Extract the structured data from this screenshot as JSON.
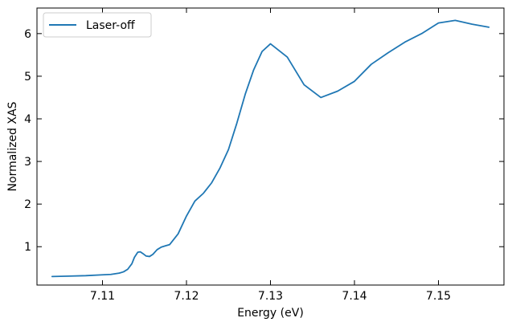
{
  "chart_data": {
    "type": "line",
    "xlabel": "Energy (eV)",
    "ylabel": "Normalized XAS",
    "xlim": [
      7.1022,
      7.1578
    ],
    "ylim": [
      0.1,
      6.6
    ],
    "xticks": [
      7.11,
      7.12,
      7.13,
      7.14,
      7.15
    ],
    "xtick_labels": [
      "7.11",
      "7.12",
      "7.13",
      "7.14",
      "7.15"
    ],
    "yticks": [
      1,
      2,
      3,
      4,
      5,
      6
    ],
    "ytick_labels": [
      "1",
      "2",
      "3",
      "4",
      "5",
      "6"
    ],
    "legend_position": "upper-left",
    "grid": false,
    "tick_direction": "in",
    "ticks_on_all_sides": true,
    "series": [
      {
        "name": "Laser-off",
        "color": "#1f77b4",
        "points": [
          [
            7.104,
            0.3
          ],
          [
            7.106,
            0.31
          ],
          [
            7.108,
            0.32
          ],
          [
            7.11,
            0.34
          ],
          [
            7.111,
            0.35
          ],
          [
            7.112,
            0.38
          ],
          [
            7.1125,
            0.41
          ],
          [
            7.113,
            0.47
          ],
          [
            7.1135,
            0.6
          ],
          [
            7.1138,
            0.75
          ],
          [
            7.1142,
            0.87
          ],
          [
            7.1145,
            0.88
          ],
          [
            7.1148,
            0.84
          ],
          [
            7.1152,
            0.78
          ],
          [
            7.1156,
            0.77
          ],
          [
            7.116,
            0.82
          ],
          [
            7.1165,
            0.93
          ],
          [
            7.117,
            0.99
          ],
          [
            7.1175,
            1.02
          ],
          [
            7.118,
            1.05
          ],
          [
            7.119,
            1.3
          ],
          [
            7.12,
            1.72
          ],
          [
            7.121,
            2.07
          ],
          [
            7.122,
            2.25
          ],
          [
            7.123,
            2.5
          ],
          [
            7.124,
            2.85
          ],
          [
            7.125,
            3.28
          ],
          [
            7.126,
            3.9
          ],
          [
            7.127,
            4.58
          ],
          [
            7.128,
            5.15
          ],
          [
            7.129,
            5.58
          ],
          [
            7.13,
            5.76
          ],
          [
            7.132,
            5.45
          ],
          [
            7.134,
            4.8
          ],
          [
            7.136,
            4.5
          ],
          [
            7.138,
            4.65
          ],
          [
            7.14,
            4.88
          ],
          [
            7.142,
            5.28
          ],
          [
            7.144,
            5.55
          ],
          [
            7.146,
            5.8
          ],
          [
            7.148,
            6.0
          ],
          [
            7.15,
            6.25
          ],
          [
            7.152,
            6.31
          ],
          [
            7.154,
            6.22
          ],
          [
            7.156,
            6.15
          ]
        ]
      }
    ]
  }
}
